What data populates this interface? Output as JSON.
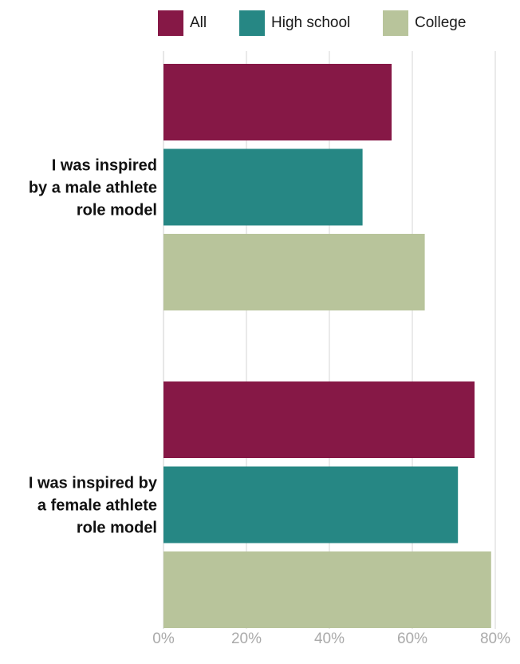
{
  "chart_data": {
    "type": "bar",
    "orientation": "horizontal",
    "categories": [
      [
        "I was inspired",
        "by a male athlete",
        "role model"
      ],
      [
        "I was inspired by",
        "a female athlete",
        "role model"
      ]
    ],
    "series": [
      {
        "name": "All",
        "color": "#861846",
        "values": [
          55,
          75
        ]
      },
      {
        "name": "High school",
        "color": "#268784",
        "values": [
          48,
          71
        ]
      },
      {
        "name": "College",
        "color": "#b8c49b",
        "values": [
          63,
          79
        ]
      }
    ],
    "xlim": [
      0,
      80
    ],
    "xticks": [
      0,
      20,
      40,
      60,
      80
    ],
    "tick_suffix": "%",
    "grid": true,
    "legend_position": "top"
  }
}
